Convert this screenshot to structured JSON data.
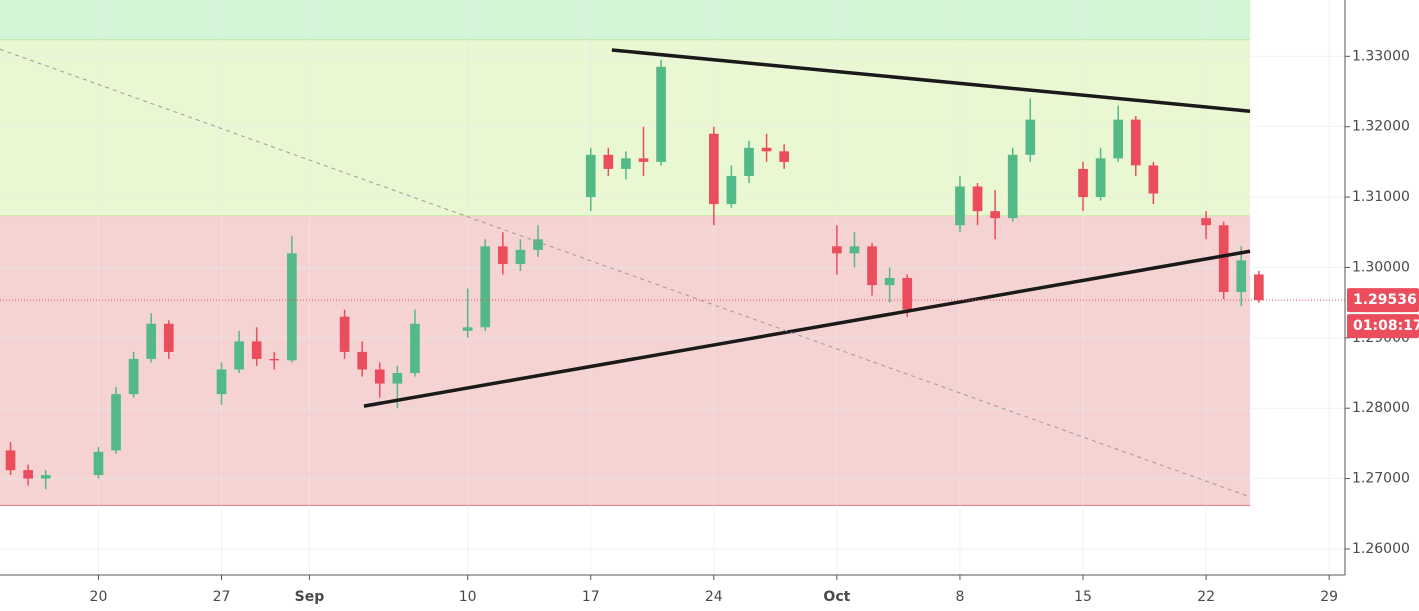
{
  "chart_data": {
    "type": "candlestick",
    "xlim": [
      -5.6,
      70.9
    ],
    "xticks": [
      {
        "value": 0,
        "label": "20"
      },
      {
        "value": 7,
        "label": "27"
      },
      {
        "value": 12,
        "label": "Sep"
      },
      {
        "value": 21,
        "label": "10"
      },
      {
        "value": 28,
        "label": "17"
      },
      {
        "value": 35,
        "label": "24"
      },
      {
        "value": 42,
        "label": "Oct"
      },
      {
        "value": 49,
        "label": "8"
      },
      {
        "value": 56,
        "label": "15"
      },
      {
        "value": 63,
        "label": "22"
      },
      {
        "value": 70,
        "label": "29"
      }
    ],
    "ylim": [
      1.2563,
      1.338
    ],
    "yticks": [
      {
        "value": 1.26,
        "label": "1.26000"
      },
      {
        "value": 1.27,
        "label": "1.27000"
      },
      {
        "value": 1.28,
        "label": "1.28000"
      },
      {
        "value": 1.29,
        "label": "1.29000"
      },
      {
        "value": 1.3,
        "label": "1.30000"
      },
      {
        "value": 1.31,
        "label": "1.31000"
      },
      {
        "value": 1.32,
        "label": "1.32000"
      },
      {
        "value": 1.33,
        "label": "1.33000"
      }
    ],
    "grid": true,
    "up_color": "#53b987",
    "down_color": "#eb4d5c",
    "x": [
      -5,
      -4,
      -3,
      0,
      1,
      2,
      3,
      4,
      7,
      8,
      9,
      10,
      11,
      14,
      15,
      16,
      17,
      18,
      21,
      22,
      23,
      24,
      25,
      28,
      29,
      30,
      31,
      32,
      35,
      36,
      37,
      38,
      39,
      42,
      43,
      44,
      45,
      46,
      49,
      50,
      51,
      52,
      53,
      56,
      57,
      58,
      59,
      60,
      63,
      64,
      65,
      66
    ],
    "open": [
      1.274,
      1.2712,
      1.27,
      1.2705,
      1.274,
      1.282,
      1.287,
      1.292,
      1.282,
      1.2855,
      1.2895,
      1.287,
      1.2868,
      1.293,
      1.288,
      1.2855,
      1.2835,
      1.285,
      1.291,
      1.2915,
      1.303,
      1.3005,
      1.3025,
      1.31,
      1.316,
      1.314,
      1.3155,
      1.315,
      1.319,
      1.309,
      1.313,
      1.317,
      1.3165,
      1.303,
      1.302,
      1.303,
      1.2975,
      1.2985,
      1.306,
      1.3115,
      1.308,
      1.307,
      1.316,
      1.314,
      1.31,
      1.3155,
      1.321,
      1.3145,
      1.307,
      1.306,
      1.2965,
      1.299
    ],
    "high": [
      1.2752,
      1.272,
      1.2712,
      1.2745,
      1.283,
      1.288,
      1.2935,
      1.2925,
      1.2865,
      1.291,
      1.2915,
      1.288,
      1.3045,
      1.294,
      1.2895,
      1.2865,
      1.286,
      1.294,
      1.297,
      1.304,
      1.305,
      1.304,
      1.306,
      1.317,
      1.317,
      1.3165,
      1.32,
      1.3295,
      1.32,
      1.3145,
      1.318,
      1.319,
      1.3175,
      1.306,
      1.305,
      1.3035,
      1.3,
      1.299,
      1.313,
      1.312,
      1.311,
      1.317,
      1.324,
      1.315,
      1.317,
      1.323,
      1.3215,
      1.315,
      1.308,
      1.3065,
      1.303,
      1.2995
    ],
    "low": [
      1.2705,
      1.269,
      1.2685,
      1.27,
      1.2735,
      1.2815,
      1.2865,
      1.287,
      1.2805,
      1.285,
      1.286,
      1.2855,
      1.2865,
      1.287,
      1.2845,
      1.2815,
      1.28,
      1.2845,
      1.29,
      1.291,
      1.299,
      1.2995,
      1.3015,
      1.308,
      1.313,
      1.3125,
      1.313,
      1.3145,
      1.306,
      1.3085,
      1.312,
      1.315,
      1.314,
      1.299,
      1.3,
      1.296,
      1.295,
      1.293,
      1.305,
      1.306,
      1.304,
      1.3065,
      1.315,
      1.308,
      1.3095,
      1.315,
      1.313,
      1.309,
      1.304,
      1.2955,
      1.2945,
      1.295
    ],
    "close": [
      1.2712,
      1.27,
      1.2705,
      1.2738,
      1.282,
      1.287,
      1.292,
      1.288,
      1.2855,
      1.2895,
      1.287,
      1.2868,
      1.302,
      1.288,
      1.2855,
      1.2835,
      1.285,
      1.292,
      1.2915,
      1.303,
      1.3005,
      1.3025,
      1.304,
      1.316,
      1.314,
      1.3155,
      1.315,
      1.3285,
      1.309,
      1.313,
      1.317,
      1.3165,
      1.315,
      1.302,
      1.303,
      1.2975,
      1.2985,
      1.294,
      1.3115,
      1.308,
      1.307,
      1.316,
      1.321,
      1.31,
      1.3155,
      1.321,
      1.3145,
      1.3105,
      1.306,
      1.2965,
      1.301,
      1.29536
    ],
    "zones": [
      {
        "from": 1.3323,
        "to": 1.338,
        "x_end": 65.5,
        "color": "#d3f5d6",
        "edge": "#9fd66a"
      },
      {
        "from": 1.3073,
        "to": 1.3323,
        "x_end": 65.5,
        "color": "#e9f7d3",
        "edge": "#9fd66a"
      },
      {
        "from": 1.2662,
        "to": 1.3073,
        "x_end": 65.5,
        "color": "#f5d3d3",
        "edge": "#e07a7a"
      }
    ],
    "lines": [
      {
        "x": [
          29.2,
          65.5
        ],
        "y": [
          1.3309,
          1.3222
        ],
        "color": "#1a1a1a",
        "dashed": false
      },
      {
        "x": [
          15.1,
          65.5
        ],
        "y": [
          1.2803,
          1.3023
        ],
        "color": "#1a1a1a",
        "dashed": false
      },
      {
        "x": [
          -5.6,
          65.5
        ],
        "y": [
          1.331,
          1.2674
        ],
        "color": "#a09a9a",
        "dashed": true
      }
    ],
    "last_price": {
      "value": 1.29536,
      "label": "1.29536"
    },
    "countdown": "01:08:17"
  }
}
